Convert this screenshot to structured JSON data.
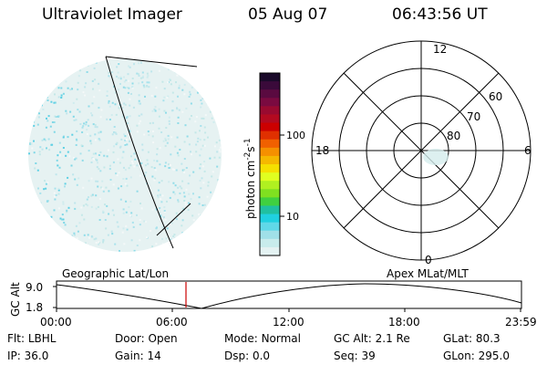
{
  "header": {
    "instrument": "Ultraviolet Imager",
    "date": "05 Aug 07",
    "time": "06:43:56 UT"
  },
  "colorbar": {
    "label": "photon cm",
    "label_exp1": "-2",
    "label_mid": "s",
    "label_exp2": "-1",
    "ticks": [
      "100",
      "10"
    ],
    "colors": [
      "#1a0a2a",
      "#3a0a3a",
      "#5a0a40",
      "#7a0a40",
      "#990a30",
      "#b30a20",
      "#cc0000",
      "#e03000",
      "#f06000",
      "#f59000",
      "#f5b800",
      "#f5e000",
      "#e0ff20",
      "#b0f020",
      "#80e020",
      "#40d040",
      "#20c0a0",
      "#20d0e0",
      "#60d8e8",
      "#a0e0e8",
      "#c8ecec",
      "#e4f2f2"
    ]
  },
  "polar": {
    "mlt_labels": {
      "top": "12",
      "left": "18",
      "right": "6",
      "bottom": "0"
    },
    "lat_labels": [
      "60",
      "70",
      "80"
    ]
  },
  "panel_labels": {
    "left": "Geographic Lat/Lon",
    "right": "Apex MLat/MLT"
  },
  "orbit": {
    "axis_label": "GC Alt",
    "y_ticks": [
      "9.0",
      "1.8"
    ],
    "x_ticks": [
      "00:00",
      "06:00",
      "12:00",
      "18:00",
      "23:59"
    ],
    "current_marker_color": "#cc0000"
  },
  "info": {
    "row1": [
      {
        "label": "Flt:",
        "value": "LBHL"
      },
      {
        "label": "Door:",
        "value": "Open"
      },
      {
        "label": "Mode:",
        "value": "Normal"
      },
      {
        "label": "GC Alt:",
        "value": "2.1 Re"
      },
      {
        "label": "GLat:",
        "value": "80.3"
      }
    ],
    "row2": [
      {
        "label": "IP:",
        "value": "36.0"
      },
      {
        "label": "Gain:",
        "value": "14"
      },
      {
        "label": "Dsp:",
        "value": "0.0"
      },
      {
        "label": "Seq:",
        "value": "39"
      },
      {
        "label": "GLon:",
        "value": "295.0"
      }
    ]
  }
}
